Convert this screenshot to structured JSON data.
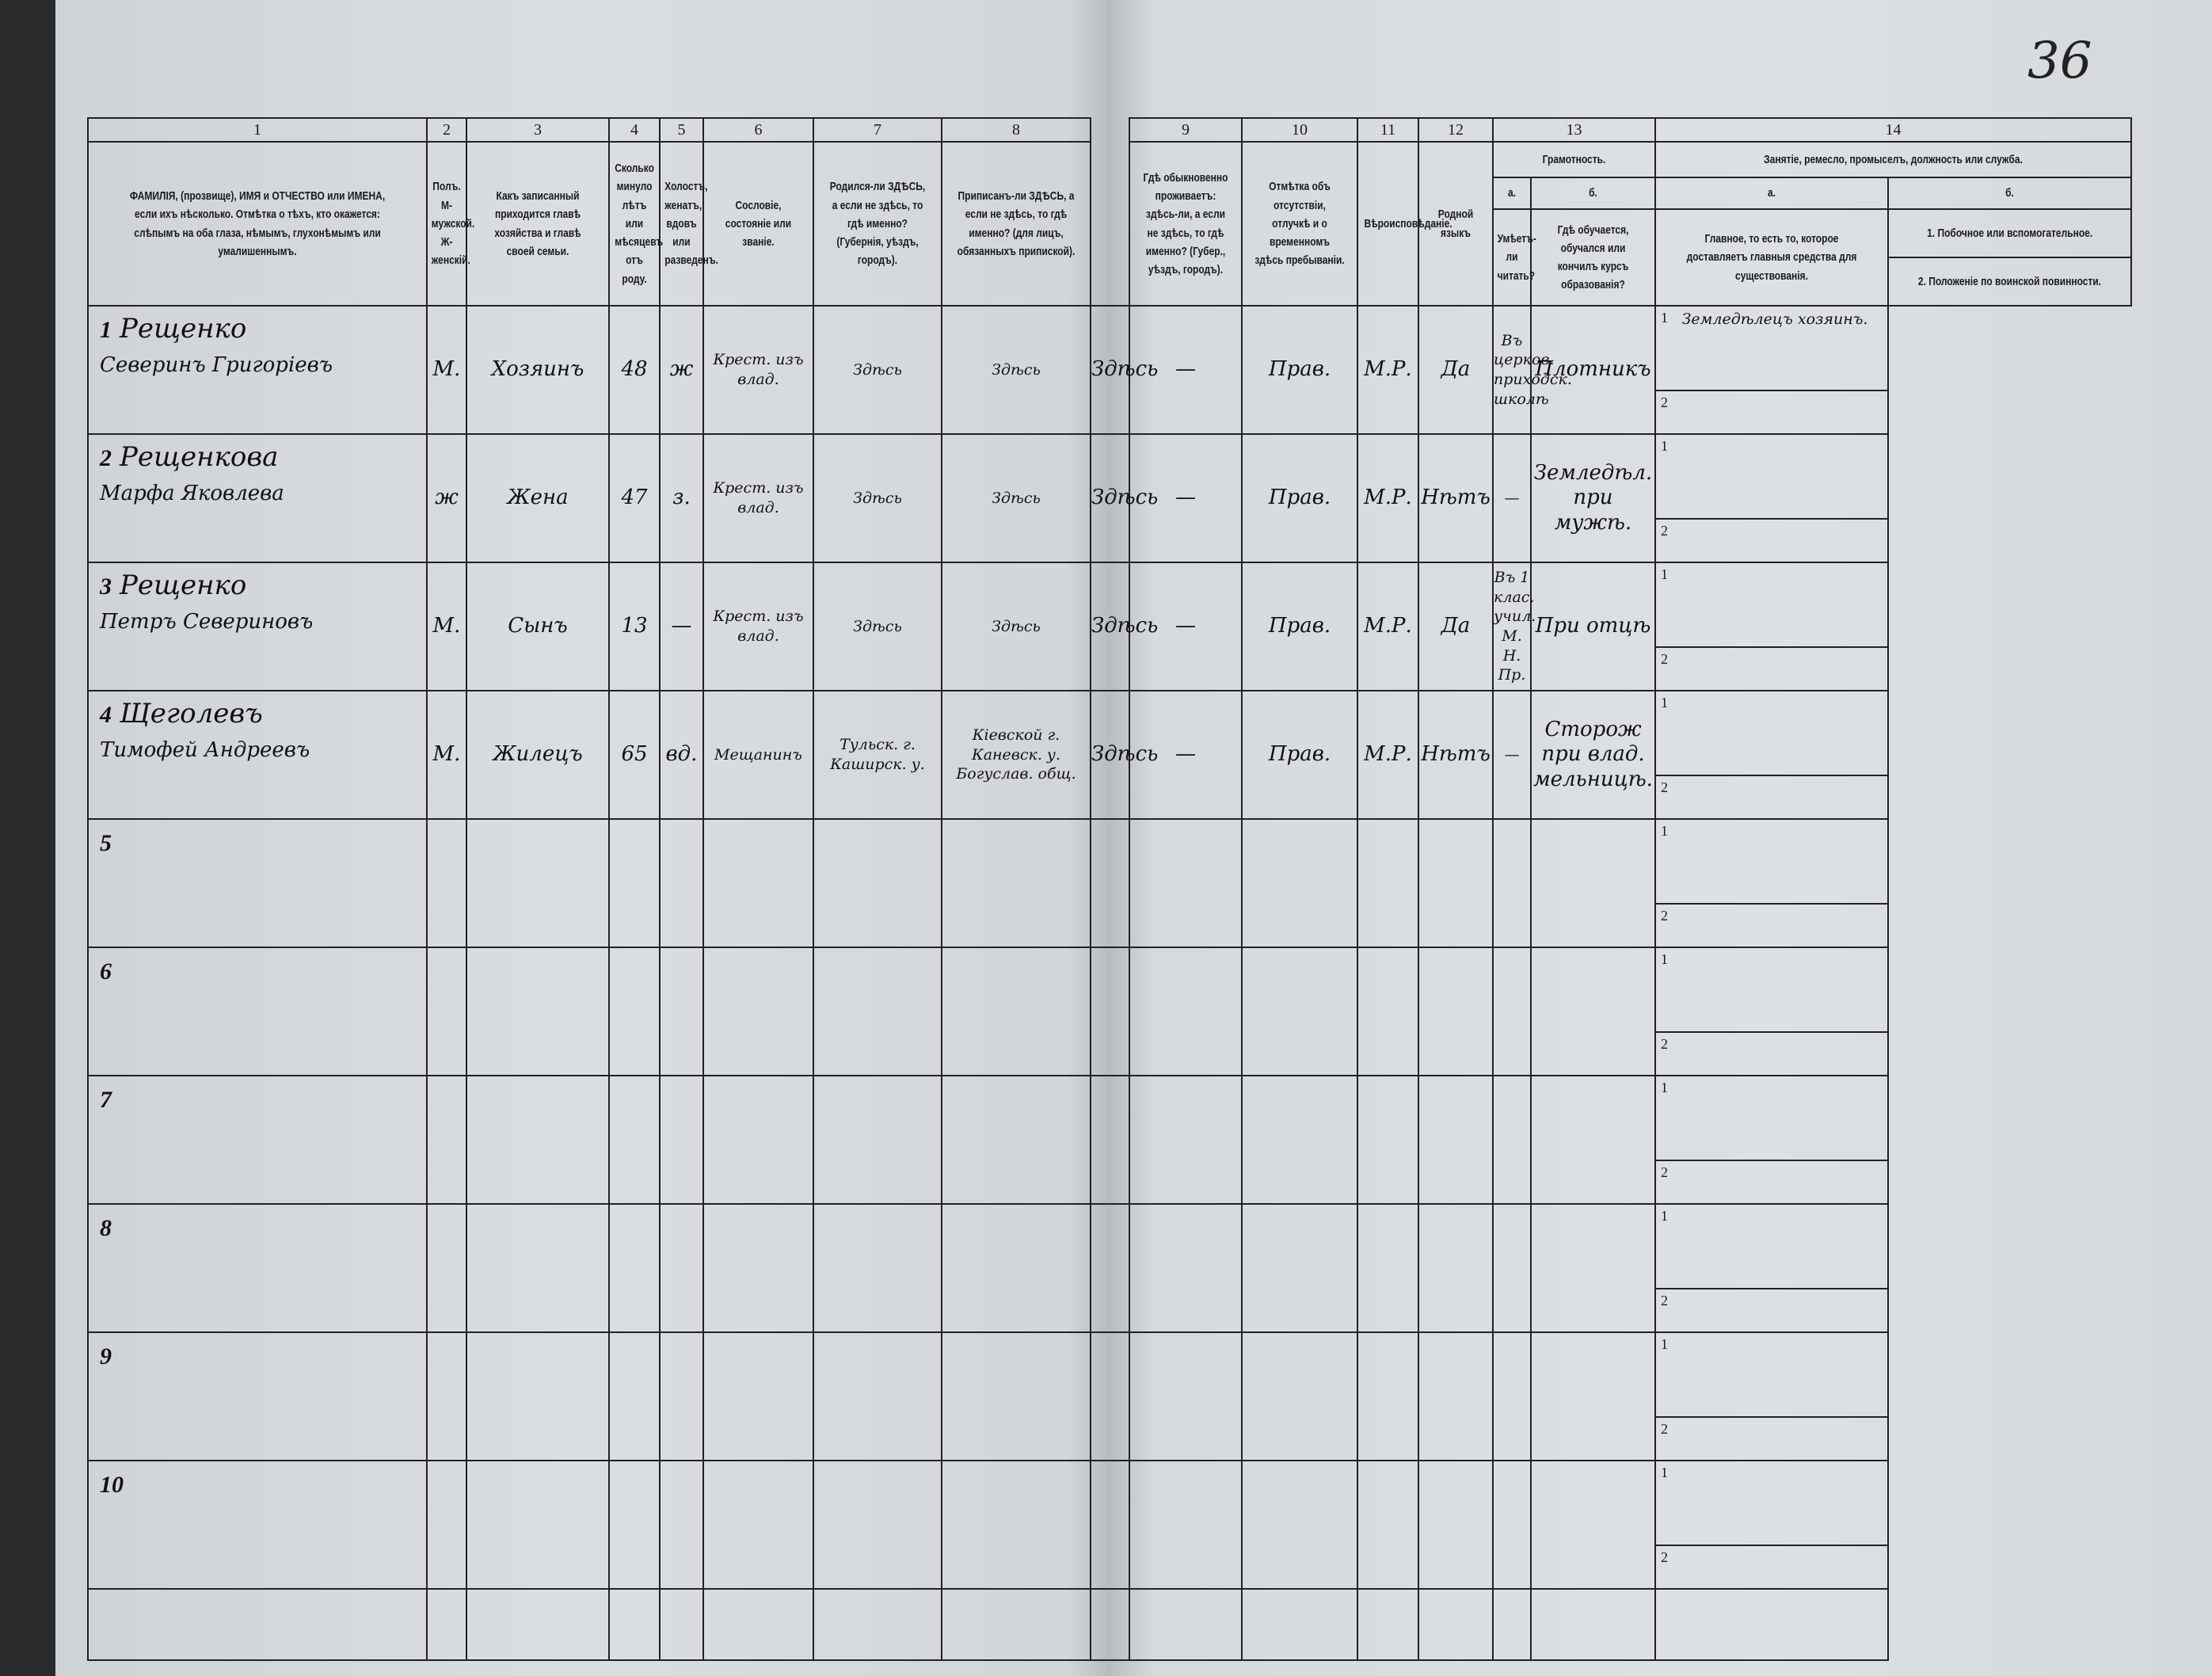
{
  "page_number": "36",
  "columns": [
    {
      "num": "1",
      "label": "ФАМИЛІЯ, (прозвище), ИМЯ и ОТЧЕСТВО или ИМЕНА, если ихъ нѣсколько. Отмѣтка о тѣхъ, кто окажется: слѣпымъ на оба глаза, нѣмымъ, глухонѣмымъ или умалишеннымъ."
    },
    {
      "num": "2",
      "label": "Полъ. М-мужской. Ж-женскій."
    },
    {
      "num": "3",
      "label": "Какъ записанный приходится главѣ хозяйства и главѣ своей семьи."
    },
    {
      "num": "4",
      "label": "Сколько минуло лѣтъ или мѣсяцевъ отъ роду."
    },
    {
      "num": "5",
      "label": "Холостъ, женатъ, вдовъ или разведенъ."
    },
    {
      "num": "6",
      "label": "Сословіе, состояніе или званіе."
    },
    {
      "num": "7",
      "label": "Родился-ли ЗДѢСЬ, а если не здѣсь, то гдѣ именно? (Губернія, уѣздъ, городъ)."
    },
    {
      "num": "8",
      "label": "Приписанъ-ли ЗДѢСЬ, а если не здѣсь, то гдѣ именно? (для лицъ, обязанныхъ припиской)."
    },
    {
      "num": "9",
      "label": "Гдѣ обыкновенно проживаетъ: здѣсь-ли, а если не здѣсь, то гдѣ именно? (Губер., уѣздъ, городъ)."
    },
    {
      "num": "10",
      "label": "Отмѣтка объ отсутствіи, отлучкѣ и о временномъ здѣсь пребываніи."
    },
    {
      "num": "11",
      "label": "Вѣроисповѣданіе."
    },
    {
      "num": "12",
      "label": "Родной языкъ"
    }
  ],
  "col13": {
    "num": "13",
    "title": "Грамотность.",
    "a_letter": "а.",
    "a_label": "Умѣетъ-ли читать?",
    "b_letter": "б.",
    "b_label": "Гдѣ обучается, обучался или кончилъ курсъ образованія?"
  },
  "col14": {
    "num": "14",
    "title": "Занятіе, ремесло, промыселъ, должность или служба.",
    "a_letter": "а.",
    "a_label": "Главное, то есть то, которое доставляетъ главныя средства для существованія.",
    "b_letter": "б.",
    "b1_label": "1. Побочное или вспомогательное.",
    "b2_label": "2. Положеніе по воинской повинности."
  },
  "sub_labels": [
    "1",
    "2"
  ],
  "rows": [
    {
      "n": "1",
      "surname": "Рещенко",
      "given": "Северинъ Григорiевъ",
      "sex": "М.",
      "relation": "Хозяинъ",
      "age": "48",
      "marital": "ж",
      "estate": "Крест. изъ влад.",
      "born": "Здѣсь",
      "registered": "Здѣсь",
      "resides": "Здѣсь",
      "absence": "—",
      "religion": "Прав.",
      "language": "М.Р.",
      "literate": "Да",
      "education": "Въ церков. приходск. школѣ",
      "occupation": "Плотникъ",
      "secondary": "Земледѣлецъ хозяинъ.",
      "military": ""
    },
    {
      "n": "2",
      "surname": "Рещенкова",
      "given": "Марфа Яковлева",
      "sex": "ж",
      "relation": "Жена",
      "age": "47",
      "marital": "з.",
      "estate": "Крест. изъ влад.",
      "born": "Здѣсь",
      "registered": "Здѣсь",
      "resides": "Здѣсь",
      "absence": "—",
      "religion": "Прав.",
      "language": "М.Р.",
      "literate": "Нѣтъ",
      "education": "—",
      "occupation": "Земледѣл. при мужѣ.",
      "secondary": "",
      "military": ""
    },
    {
      "n": "3",
      "surname": "Рещенко",
      "given": "Петръ Севериновъ",
      "sex": "М.",
      "relation": "Сынъ",
      "age": "13",
      "marital": "—",
      "estate": "Крест. изъ влад.",
      "born": "Здѣсь",
      "registered": "Здѣсь",
      "resides": "Здѣсь",
      "absence": "—",
      "religion": "Прав.",
      "language": "М.Р.",
      "literate": "Да",
      "education": "Въ 1 клас. учил. М. Н. Пр.",
      "occupation": "При отцѣ",
      "secondary": "",
      "military": ""
    },
    {
      "n": "4",
      "surname": "Щеголевъ",
      "given": "Тимофей Андреевъ",
      "sex": "М.",
      "relation": "Жилецъ",
      "age": "65",
      "marital": "вд.",
      "estate": "Мещанинъ",
      "born": "Тульск. г. Каширск. у.",
      "registered": "Кiевской г. Каневск. у. Богуслав. общ.",
      "resides": "Здѣсь",
      "absence": "—",
      "religion": "Прав.",
      "language": "М.Р.",
      "literate": "Нѣтъ",
      "education": "—",
      "occupation": "Сторож при влад. мельницѣ.",
      "secondary": "",
      "military": ""
    },
    {
      "n": "5"
    },
    {
      "n": "6"
    },
    {
      "n": "7"
    },
    {
      "n": "8"
    },
    {
      "n": "9"
    },
    {
      "n": "10"
    }
  ]
}
